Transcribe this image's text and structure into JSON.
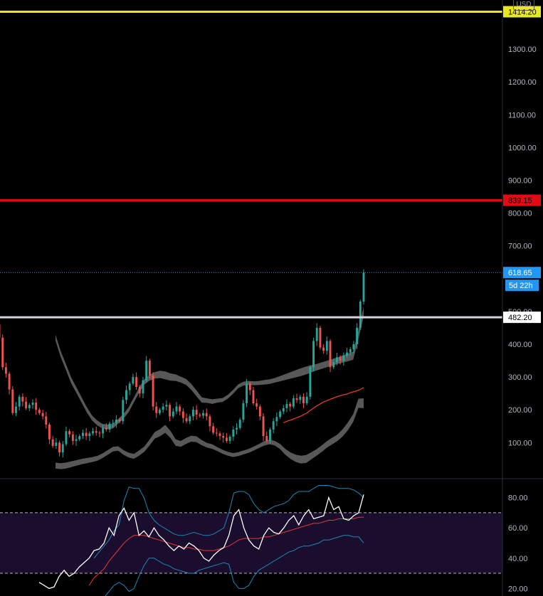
{
  "currency": "USD",
  "chart_data": [
    {
      "type": "candlestick",
      "price_axis": {
        "ticks": [
          "1300.00",
          "1200.00",
          "1100.00",
          "1000.00",
          "900.00",
          "800.00",
          "700.00",
          "500.00",
          "400.00",
          "300.00",
          "200.00",
          "100.00"
        ],
        "tick_values": [
          1300,
          1200,
          1100,
          1000,
          900,
          800,
          700,
          500,
          400,
          300,
          200,
          100
        ],
        "ylim": [
          -10,
          1450
        ]
      },
      "horizontal_lines": [
        {
          "value": 1414.2,
          "label": "1414.20",
          "color": "#e8e81c",
          "text_color": "#000000"
        },
        {
          "value": 839.15,
          "label": "839.15",
          "color": "#e50914",
          "text_color": "#000000"
        },
        {
          "value": 482.2,
          "label": "482.20",
          "color": "#d1d4dc",
          "text_color": "#000000"
        }
      ],
      "last_price": {
        "value": 618.65,
        "label": "618.65",
        "countdown": "5d 22h",
        "color": "#2196f3"
      },
      "colors": {
        "up": "#26a69a",
        "down": "#ef5350",
        "band": "#5d5d5d",
        "ma": "#e53935"
      },
      "closes": [
        420,
        330,
        310,
        262,
        190,
        210,
        240,
        225,
        205,
        215,
        222,
        200,
        190,
        180,
        155,
        110,
        90,
        100,
        70,
        95,
        135,
        125,
        105,
        110,
        120,
        130,
        120,
        128,
        135,
        130,
        128,
        145,
        140,
        158,
        160,
        170,
        165,
        230,
        260,
        280,
        300,
        270,
        250,
        290,
        350,
        305,
        210,
        190,
        200,
        210,
        215,
        180,
        195,
        210,
        195,
        175,
        165,
        180,
        200,
        185,
        182,
        190,
        180,
        150,
        130,
        128,
        120,
        115,
        105,
        118,
        140,
        145,
        170,
        220,
        280,
        260,
        220,
        210,
        180,
        120,
        105,
        140,
        165,
        178,
        195,
        205,
        218,
        210,
        235,
        230,
        240,
        220,
        240,
        330,
        410,
        450,
        390,
        380,
        410,
        330,
        345,
        360,
        350,
        365,
        375,
        385,
        400,
        450,
        530,
        618.65
      ],
      "ma_start_index": 85,
      "ma_values": [
        160,
        165,
        168,
        172,
        176,
        180,
        185,
        190,
        198,
        205,
        212,
        218,
        224,
        228,
        232,
        236,
        240,
        243,
        246,
        248,
        252,
        255,
        258,
        262,
        268
      ],
      "upper_band": [
        420,
        370,
        330,
        290,
        260,
        230,
        200,
        175,
        160,
        150,
        148,
        150,
        165,
        180,
        200,
        230,
        260,
        285,
        298,
        305,
        308,
        305,
        300,
        298,
        292,
        285,
        270,
        250,
        230,
        228,
        225,
        228,
        230,
        240,
        255,
        272,
        280,
        282,
        281,
        282,
        284,
        286,
        290,
        295,
        300,
        305,
        310,
        315,
        320,
        325,
        330,
        335,
        340,
        345,
        350,
        355,
        360,
        365,
        430,
        500
      ],
      "lower_band": [
        30,
        28,
        30,
        34,
        38,
        42,
        45,
        48,
        52,
        60,
        70,
        80,
        82,
        70,
        62,
        58,
        68,
        80,
        100,
        122,
        130,
        142,
        125,
        100,
        96,
        105,
        112,
        110,
        100,
        92,
        88,
        80,
        72,
        66,
        62,
        65,
        70,
        75,
        82,
        90,
        98,
        102,
        98,
        88,
        72,
        60,
        52,
        48,
        50,
        60,
        70,
        82,
        95,
        105,
        115,
        130,
        150,
        175,
        220,
        220
      ],
      "band_width": [
        18,
        18,
        18,
        18,
        17,
        16,
        16,
        15,
        15,
        14,
        14,
        14,
        14,
        14,
        15,
        15,
        16,
        16,
        18,
        20,
        22,
        24,
        22,
        20,
        18,
        18,
        18,
        18,
        16,
        14,
        14,
        12,
        12,
        12,
        12,
        12,
        12,
        12,
        12,
        12,
        14,
        14,
        14,
        16,
        18,
        20,
        22,
        24,
        24,
        22,
        20,
        20,
        20,
        20,
        20,
        22,
        24,
        24,
        28,
        30
      ]
    },
    {
      "type": "line",
      "name_hidden": true,
      "rsi_axis": {
        "ticks": [
          "80.00",
          "60.00",
          "40.00",
          "20.00"
        ],
        "tick_values": [
          80,
          60,
          40,
          20
        ],
        "ylim": [
          15,
          92
        ]
      },
      "overbought": 70,
      "oversold": 30,
      "colors": {
        "rsi": "#ffffff",
        "signal": "#e53935",
        "bands": "#1e88b5",
        "zone": "#1a0d2e"
      },
      "rsi": [
        24,
        22,
        20,
        21,
        28,
        32,
        28,
        30,
        34,
        37,
        40,
        45,
        46,
        50,
        60,
        55,
        68,
        73,
        65,
        70,
        55,
        58,
        54,
        60,
        55,
        52,
        48,
        45,
        48,
        46,
        50,
        48,
        45,
        40,
        38,
        42,
        45,
        47,
        55,
        68,
        72,
        60,
        52,
        48,
        46,
        55,
        60,
        57,
        56,
        60,
        65,
        68,
        62,
        68,
        72,
        66,
        67,
        68,
        80,
        72,
        74,
        66,
        65,
        68,
        70,
        82
      ],
      "signal": [
        null,
        null,
        null,
        null,
        null,
        null,
        null,
        null,
        null,
        null,
        22,
        27,
        30,
        33,
        38,
        42,
        46,
        50,
        53,
        55,
        55,
        55,
        54,
        53,
        52,
        51,
        50,
        49,
        48,
        47,
        47,
        46,
        46,
        45,
        45,
        45,
        46,
        47,
        48,
        50,
        52,
        53,
        53,
        53,
        53,
        54,
        54,
        55,
        56,
        57,
        58,
        59,
        60,
        61,
        62,
        63,
        63,
        64,
        65,
        65,
        66,
        66,
        66,
        66,
        67,
        67
      ],
      "upper": [
        null,
        null,
        null,
        null,
        null,
        null,
        null,
        null,
        null,
        null,
        null,
        40,
        44,
        48,
        52,
        58,
        62,
        78,
        87,
        86,
        86,
        80,
        70,
        65,
        62,
        60,
        58,
        56,
        55,
        55,
        56,
        57,
        56,
        55,
        55,
        56,
        58,
        60,
        70,
        83,
        84,
        84,
        82,
        76,
        72,
        70,
        72,
        74,
        75,
        76,
        78,
        82,
        84,
        84,
        84,
        86,
        88,
        88,
        88,
        87,
        86,
        86,
        86,
        85,
        83,
        80
      ],
      "lower": [
        null,
        null,
        null,
        null,
        null,
        null,
        null,
        null,
        null,
        null,
        null,
        10,
        12,
        14,
        18,
        22,
        24,
        22,
        18,
        20,
        28,
        35,
        40,
        40,
        38,
        36,
        35,
        33,
        32,
        31,
        30,
        30,
        32,
        33,
        34,
        35,
        36,
        37,
        36,
        24,
        20,
        20,
        22,
        28,
        32,
        34,
        36,
        38,
        40,
        42,
        44,
        45,
        47,
        48,
        48,
        49,
        50,
        52,
        52,
        53,
        54,
        55,
        55,
        54,
        54,
        50
      ]
    }
  ]
}
